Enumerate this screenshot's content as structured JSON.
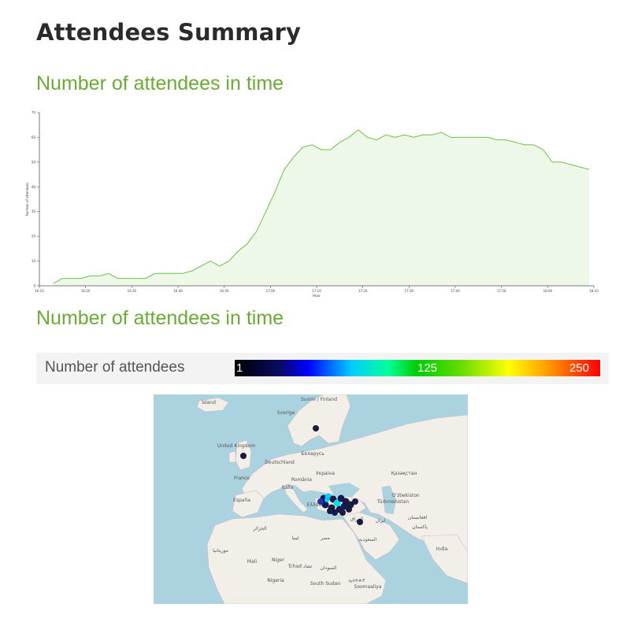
{
  "page": {
    "title": "Attendees Summary",
    "section_line_title": "Number of attendees in time",
    "section_map_title": "Number of attendees in time"
  },
  "legend": {
    "label": "Number of attendees",
    "scale_min": "1",
    "scale_mid": "125",
    "scale_max": "250"
  },
  "colors": {
    "accent": "#6aab35",
    "line": "#6cc04a",
    "fill": "#eef8e8"
  },
  "chart_data": {
    "type": "area",
    "xlabel": "Hour",
    "ylabel": "Number of attendees",
    "ylim": [
      0,
      70
    ],
    "yticks": [
      "0",
      "10",
      "20",
      "30",
      "40",
      "50",
      "60",
      "70"
    ],
    "xticks": [
      "16:10",
      "16:20",
      "16:30",
      "16:40",
      "16:50",
      "17:00",
      "17:10",
      "17:20",
      "17:30",
      "17:40",
      "17:50",
      "18:00",
      "18:10"
    ],
    "xlim": [
      0,
      120
    ],
    "x": [
      3,
      5,
      7,
      9,
      11,
      13,
      15,
      17,
      19,
      21,
      23,
      25,
      27,
      29,
      31,
      33,
      35,
      37,
      39,
      41,
      43,
      45,
      47,
      49,
      51,
      53,
      55,
      57,
      59,
      61,
      63,
      65,
      67,
      69,
      71,
      73,
      75,
      77,
      79,
      81,
      83,
      85,
      87,
      89,
      91,
      93,
      95,
      97,
      99,
      101,
      103,
      105,
      107,
      109,
      111,
      113,
      115,
      117,
      119
    ],
    "values": [
      1,
      3,
      3,
      3,
      4,
      4,
      5,
      3,
      3,
      3,
      3,
      5,
      5,
      5,
      5,
      6,
      8,
      10,
      8,
      10,
      14,
      17,
      22,
      30,
      38,
      47,
      52,
      56,
      57,
      55,
      55,
      58,
      60,
      63,
      60,
      59,
      61,
      60,
      61,
      60,
      61,
      61,
      62,
      60,
      60,
      60,
      60,
      60,
      59,
      59,
      58,
      57,
      57,
      55,
      50,
      50,
      49,
      48,
      47
    ],
    "grid": false,
    "legend": "none"
  },
  "map": {
    "labels": [
      "Ísland",
      "Suomi / Finland",
      "Sverige",
      "United Kingdom",
      "Беларусь",
      "Deutschland",
      "Україна",
      "France",
      "România",
      "Italia",
      "España",
      "Ελλάδα",
      "Қазақстан",
      "Oʻzbekiston",
      "Türkmenistan",
      "افغانستان",
      "ایران",
      "العراق",
      "الجزائر",
      "ليبيا",
      "مصر",
      "السعودية",
      "Mali",
      "Niger",
      "Tchad تشاد",
      "السودان",
      "Nigeria",
      "South Sudan",
      "ኢትዮጵያ",
      "Soomaaliya",
      "India",
      "موريتانيا",
      "پاکستان"
    ],
    "attendee_location_count": 21
  }
}
